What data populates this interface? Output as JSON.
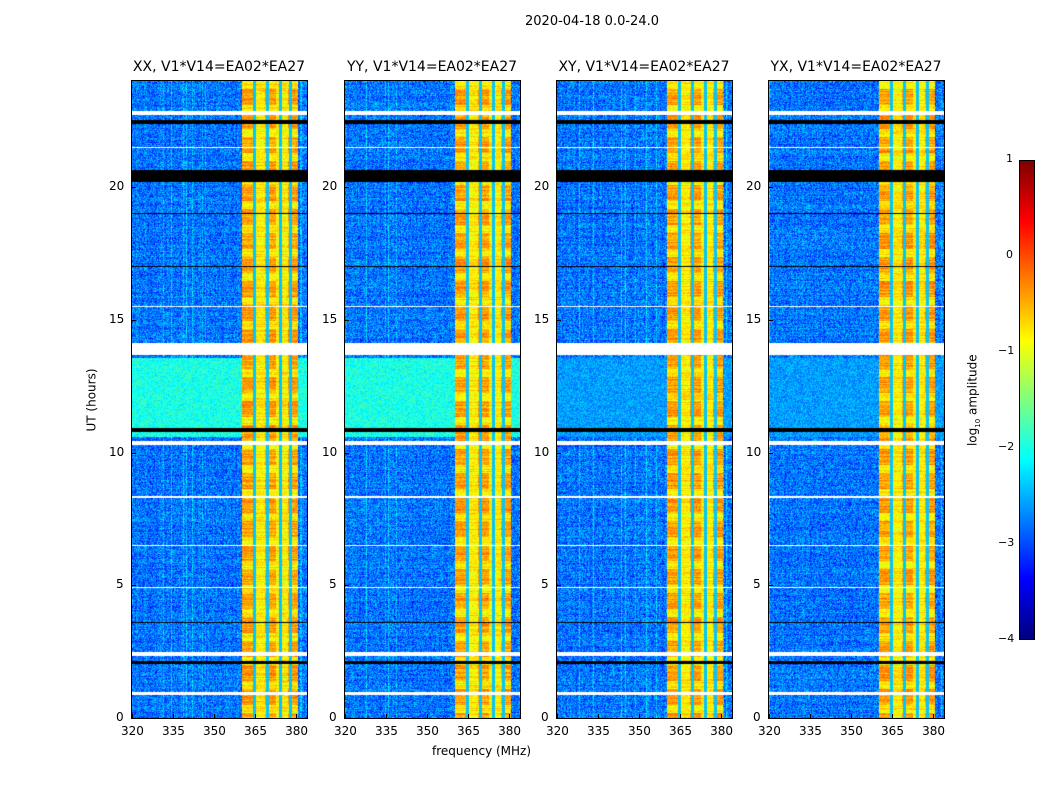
{
  "chart_data": {
    "type": "heatmap",
    "title": "2020-04-18 0.0-24.0",
    "xlabel": "frequency (MHz)",
    "ylabel": "UT (hours)",
    "xlim": [
      320,
      384
    ],
    "ylim": [
      0,
      24
    ],
    "xticks": [
      "320",
      "335",
      "350",
      "365",
      "380"
    ],
    "yticks": [
      "0",
      "5",
      "10",
      "15",
      "20"
    ],
    "panels": [
      {
        "title": "XX, V1*V14=EA02*EA27",
        "quiet_band_hours": [
          10.6,
          13.6
        ],
        "quiet_band_level": -2.0
      },
      {
        "title": "YY, V1*V14=EA02*EA27",
        "quiet_band_hours": [
          10.6,
          13.6
        ],
        "quiet_band_level": -2.0
      },
      {
        "title": "XY, V1*V14=EA02*EA27",
        "quiet_band_hours": [
          10.6,
          13.6
        ],
        "quiet_band_level": -2.6
      },
      {
        "title": "YX, V1*V14=EA02*EA27",
        "quiet_band_hours": [
          10.6,
          13.6
        ],
        "quiet_band_level": -2.6
      }
    ],
    "background_level": -2.8,
    "rfi_band_mhz": [
      360,
      380.5
    ],
    "rfi_band_level": -0.8,
    "flagged_hours": [
      [
        2.05,
        2.15
      ],
      [
        2.35,
        2.5
      ],
      [
        0.9,
        1.0
      ],
      [
        13.7,
        14.15
      ],
      [
        10.3,
        10.45
      ],
      [
        10.8,
        10.95
      ],
      [
        20.2,
        20.65
      ],
      [
        22.4,
        22.55
      ],
      [
        22.75,
        22.9
      ],
      [
        17.0,
        17.05
      ],
      [
        15.5,
        15.55
      ],
      [
        8.3,
        8.4
      ],
      [
        6.5,
        6.55
      ],
      [
        4.9,
        4.95
      ],
      [
        3.6,
        3.65
      ],
      [
        19.0,
        19.05
      ],
      [
        21.5,
        21.55
      ]
    ],
    "colorbar": {
      "label": "log10 amplitude",
      "label_main": "log",
      "label_sub": "10",
      "label_rest": " amplitude",
      "range": [
        -4,
        1
      ],
      "ticks": [
        "−4",
        "−3",
        "−2",
        "−1",
        "0",
        "1"
      ],
      "colormap": "jet"
    }
  }
}
